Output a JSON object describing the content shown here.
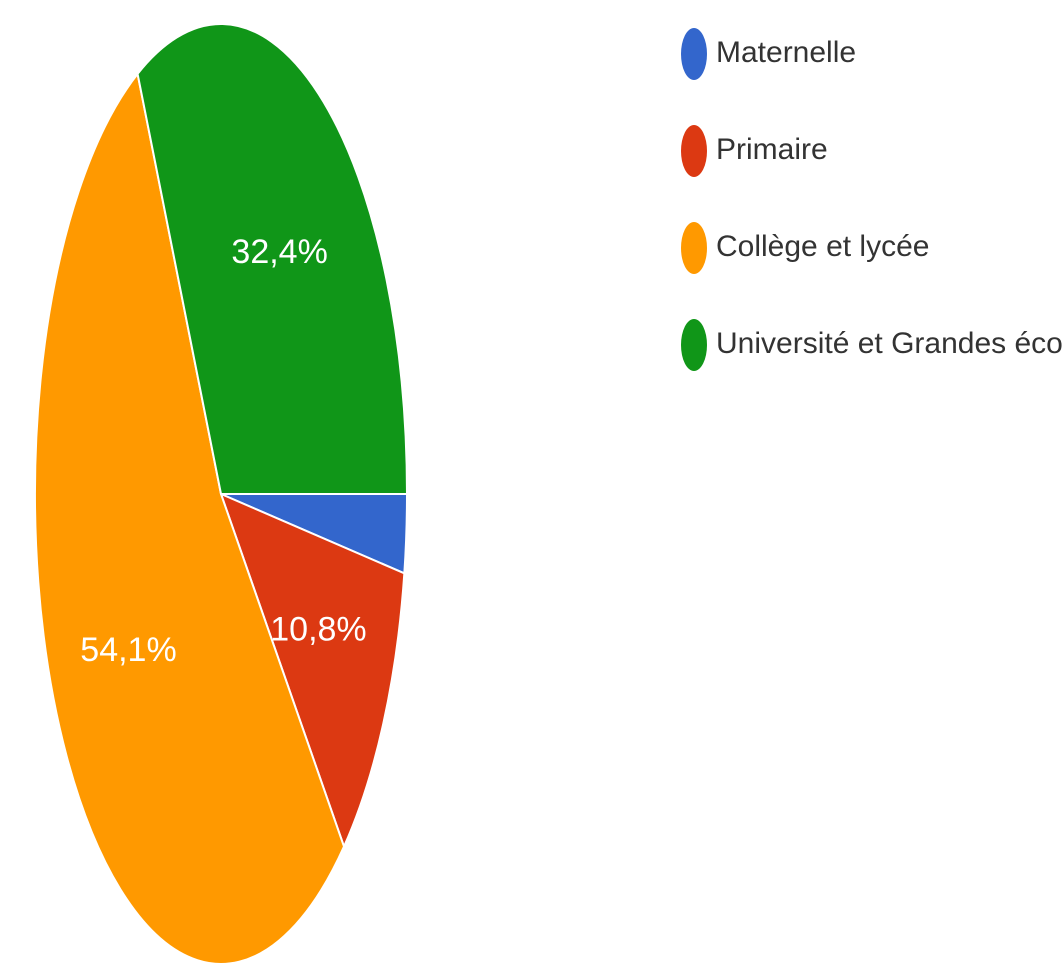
{
  "chart_data": {
    "type": "pie",
    "categories": [
      "Maternelle",
      "Primaire",
      "Collège et lycée",
      "Université et Grandes écoles"
    ],
    "values": [
      2.7,
      10.8,
      54.1,
      32.4
    ],
    "value_labels": [
      "",
      "10,8%",
      "54,1%",
      "32,4%"
    ],
    "colors": [
      "#3366cc",
      "#dc3912",
      "#ff9900",
      "#109618"
    ],
    "start_direction": "east",
    "slice_order": "clockwise",
    "legend_position": "right"
  }
}
